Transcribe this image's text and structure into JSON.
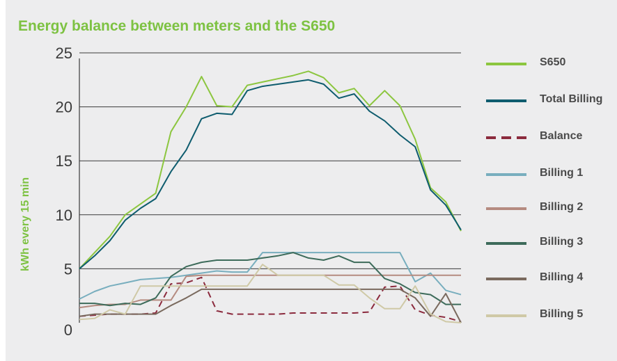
{
  "chart_data": {
    "type": "line",
    "title": "Energy balance between meters and the S650",
    "xlabel": "",
    "ylabel": "kWh every 15 min",
    "ylim": [
      0,
      25
    ],
    "yticks": [
      0,
      5,
      10,
      15,
      20,
      25
    ],
    "grid": "horizontal",
    "legend_position": "right",
    "series": [
      {
        "name": "S650",
        "color": "#8cc63f",
        "style": "solid",
        "values": [
          5.0,
          6.5,
          8.0,
          10.0,
          11.0,
          12.0,
          17.7,
          20.0,
          22.8,
          20.1,
          20.0,
          22.0,
          22.3,
          22.6,
          22.9,
          23.3,
          22.7,
          21.3,
          21.7,
          20.1,
          21.5,
          20.1,
          17.0,
          12.5,
          11.2,
          8.5
        ]
      },
      {
        "name": "Total Billing",
        "color": "#0e5c6e",
        "style": "solid",
        "values": [
          5.0,
          6.2,
          7.6,
          9.5,
          10.6,
          11.5,
          14.0,
          16.0,
          18.9,
          19.4,
          19.3,
          21.5,
          21.9,
          22.1,
          22.3,
          22.5,
          22.1,
          20.8,
          21.2,
          19.6,
          18.7,
          17.4,
          16.3,
          12.3,
          10.9,
          8.6
        ]
      },
      {
        "name": "Balance",
        "color": "#8b2a3d",
        "style": "dashed",
        "values": [
          0.6,
          0.7,
          0.8,
          0.8,
          0.8,
          0.9,
          3.6,
          3.7,
          4.2,
          1.1,
          0.8,
          0.8,
          0.8,
          0.8,
          0.9,
          0.9,
          0.9,
          0.9,
          0.9,
          1.0,
          3.3,
          3.4,
          1.2,
          0.7,
          0.5,
          0.1
        ]
      },
      {
        "name": "Billing 1",
        "color": "#78aebe",
        "style": "solid",
        "values": [
          2.2,
          2.9,
          3.4,
          3.7,
          4.0,
          4.1,
          4.2,
          4.4,
          4.6,
          4.8,
          4.7,
          4.7,
          6.5,
          6.5,
          6.5,
          6.5,
          6.5,
          6.5,
          6.5,
          6.5,
          6.5,
          6.5,
          3.8,
          4.6,
          3.0,
          2.6
        ]
      },
      {
        "name": "Billing 2",
        "color": "#b58b80",
        "style": "solid",
        "values": [
          1.4,
          1.6,
          1.7,
          1.7,
          2.1,
          2.1,
          2.1,
          4.3,
          4.4,
          4.4,
          4.4,
          4.4,
          4.4,
          4.4,
          4.4,
          4.4,
          4.4,
          4.4,
          4.4,
          4.4,
          4.4,
          4.4,
          4.4,
          4.4,
          4.4,
          4.4
        ]
      },
      {
        "name": "Billing 3",
        "color": "#3d6b5a",
        "style": "solid",
        "values": [
          1.8,
          1.8,
          1.6,
          1.8,
          1.7,
          2.3,
          4.3,
          5.2,
          5.6,
          5.8,
          5.8,
          5.8,
          6.0,
          6.2,
          6.5,
          6.0,
          5.8,
          6.2,
          5.6,
          5.6,
          4.1,
          3.6,
          2.8,
          2.6,
          1.7,
          1.7
        ]
      },
      {
        "name": "Billing 4",
        "color": "#7a6a5e",
        "style": "solid",
        "values": [
          0.6,
          0.8,
          0.8,
          0.8,
          0.8,
          0.8,
          1.6,
          2.3,
          3.1,
          3.1,
          3.1,
          3.1,
          3.1,
          3.1,
          3.1,
          3.1,
          3.1,
          3.1,
          3.1,
          3.1,
          3.1,
          3.1,
          2.3,
          0.6,
          2.7,
          0.0
        ]
      },
      {
        "name": "Billing 5",
        "color": "#cfc9a6",
        "style": "solid",
        "values": [
          0.3,
          0.4,
          1.2,
          0.8,
          3.4,
          3.4,
          3.4,
          3.4,
          3.4,
          3.4,
          3.4,
          3.4,
          5.4,
          4.4,
          4.4,
          4.4,
          4.4,
          3.5,
          3.5,
          2.3,
          1.3,
          1.3,
          3.4,
          0.8,
          0.1,
          0.0
        ]
      }
    ]
  }
}
